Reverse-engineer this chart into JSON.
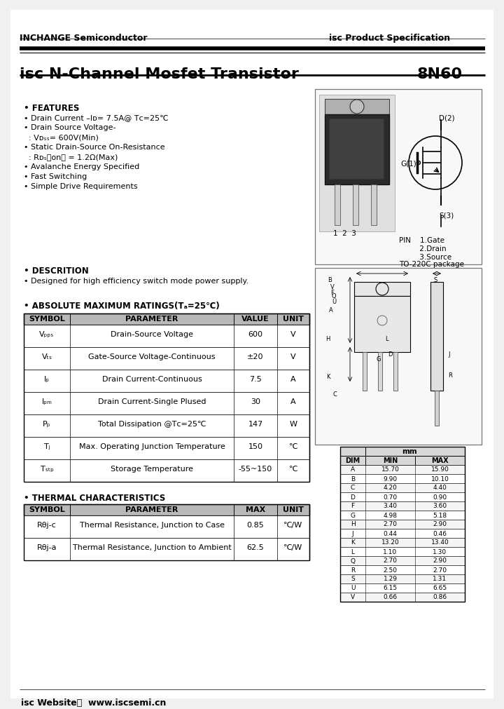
{
  "company": "INCHANGE Semiconductor",
  "spec_label": "isc Product Specification",
  "title": "isc N-Channel Mosfet Transistor",
  "part_number": "8N60",
  "abs_headers": [
    "SYMBOL",
    "PARAMETER",
    "VALUE",
    "UNIT"
  ],
  "abs_rows": [
    [
      "Vₚₚₛ",
      "Drain-Source Voltage",
      "600",
      "V"
    ],
    [
      "Vₜₛ",
      "Gate-Source Voltage-Continuous",
      "±20",
      "V"
    ],
    [
      "Iₚ",
      "Drain Current-Continuous",
      "7.5",
      "A"
    ],
    [
      "Iₚₘ",
      "Drain Current-Single Plused",
      "30",
      "A"
    ],
    [
      "Pₚ",
      "Total Dissipation @Tᴄ=25℃",
      "147",
      "W"
    ],
    [
      "Tⱼ",
      "Max. Operating Junction Temperature",
      "150",
      "℃"
    ],
    [
      "Tₛₜₚ",
      "Storage Temperature",
      "-55~150",
      "℃"
    ]
  ],
  "thermal_headers": [
    "SYMBOL",
    "PARAMETER",
    "MAX",
    "UNIT"
  ],
  "thermal_rows": [
    [
      "Rθj-c",
      "Thermal Resistance, Junction to Case",
      "0.85",
      "℃/W"
    ],
    [
      "Rθj-a",
      "Thermal Resistance, Junction to Ambient",
      "62.5",
      "℃/W"
    ]
  ],
  "dim_rows": [
    [
      "A",
      "15.70",
      "15.90"
    ],
    [
      "B",
      "9.90",
      "10.10"
    ],
    [
      "C",
      "4.20",
      "4.40"
    ],
    [
      "D",
      "0.70",
      "0.90"
    ],
    [
      "F",
      "3.40",
      "3.60"
    ],
    [
      "G",
      "4.98",
      "5.18"
    ],
    [
      "H",
      "2.70",
      "2.90"
    ],
    [
      "J",
      "0.44",
      "0.46"
    ],
    [
      "K",
      "13.20",
      "13.40"
    ],
    [
      "L",
      "1.10",
      "1.30"
    ],
    [
      "Q",
      "2.70",
      "2.90"
    ],
    [
      "R",
      "2.50",
      "2.70"
    ],
    [
      "S",
      "1.29",
      "1.31"
    ],
    [
      "U",
      "6.15",
      "6.65"
    ],
    [
      "V",
      "0.66",
      "0.86"
    ]
  ],
  "website": "isc Website：  www.iscsemi.cn",
  "bg": "#ffffff",
  "gray_hdr": "#b8b8b8",
  "black": "#000000"
}
